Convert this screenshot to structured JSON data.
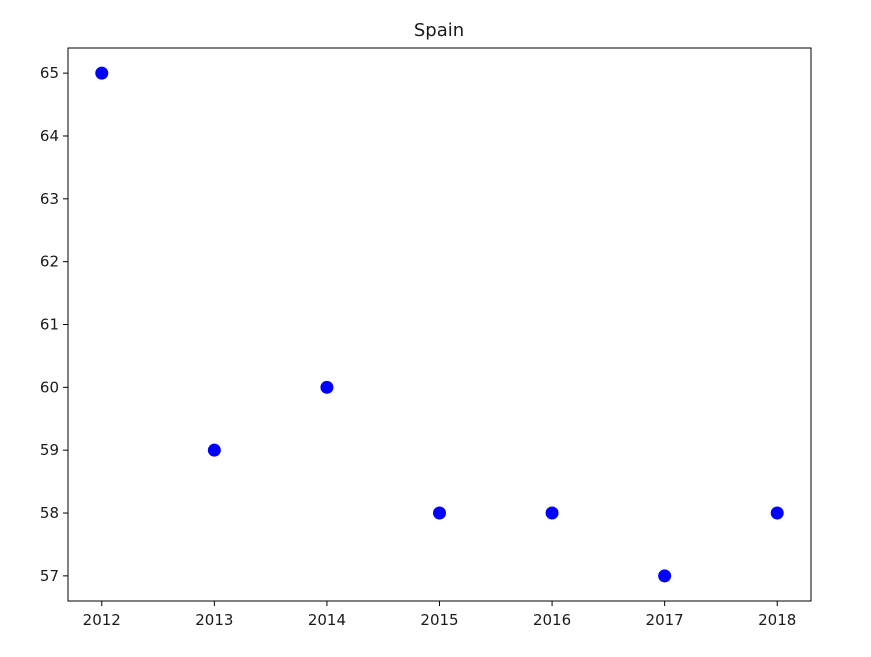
{
  "chart_data": {
    "type": "scatter",
    "title": "Spain",
    "xlabel": "",
    "ylabel": "",
    "x": [
      2012,
      2013,
      2014,
      2015,
      2016,
      2017,
      2018
    ],
    "y": [
      65,
      59,
      60,
      58,
      58,
      57,
      58
    ],
    "xlim": [
      2011.7,
      2018.3
    ],
    "ylim": [
      56.6,
      65.4
    ],
    "x_ticks": [
      "2012",
      "2013",
      "2014",
      "2015",
      "2016",
      "2017",
      "2018"
    ],
    "y_ticks": [
      "57",
      "58",
      "59",
      "60",
      "61",
      "62",
      "63",
      "64",
      "65"
    ],
    "marker_color": "#0000ff",
    "grid": false,
    "legend": "none"
  }
}
